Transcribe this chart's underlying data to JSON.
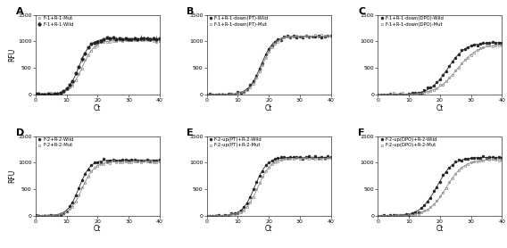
{
  "panels": [
    {
      "label": "A",
      "legend": [
        "F-1+R-1-Wild",
        "F-1+R-1-Mut"
      ],
      "curve_params": [
        {
          "L": 1050,
          "k": 0.55,
          "x0": 14.0
        },
        {
          "L": 1020,
          "k": 0.5,
          "x0": 15.0
        }
      ],
      "markers": [
        "o",
        "s"
      ],
      "colors": [
        "#222222",
        "#888888"
      ],
      "has_errorbars": true,
      "ylim": [
        0,
        1500
      ],
      "yticks": [
        0,
        500,
        1000,
        1500
      ]
    },
    {
      "label": "B",
      "legend": [
        "F-1+R-1-down(PT)-Wild",
        "F-1+R-1-down(PT)-Mut"
      ],
      "curve_params": [
        {
          "L": 1100,
          "k": 0.5,
          "x0": 17.5
        },
        {
          "L": 1100,
          "k": 0.5,
          "x0": 18.0
        }
      ],
      "markers": [
        "o",
        "s"
      ],
      "colors": [
        "#222222",
        "#888888"
      ],
      "has_errorbars": false,
      "ylim": [
        0,
        1500
      ],
      "yticks": [
        0,
        500,
        1000,
        1500
      ]
    },
    {
      "label": "C",
      "legend": [
        "F-1+R-1-down(DPO)-Wild",
        "F-1+R-1-down(DPO)-Mut"
      ],
      "curve_params": [
        {
          "L": 980,
          "k": 0.35,
          "x0": 22.5
        },
        {
          "L": 950,
          "k": 0.3,
          "x0": 25.5
        }
      ],
      "markers": [
        "o",
        "s"
      ],
      "colors": [
        "#222222",
        "#888888"
      ],
      "has_errorbars": false,
      "ylim": [
        0,
        1500
      ],
      "yticks": [
        0,
        500,
        1000,
        1500
      ]
    },
    {
      "label": "D",
      "legend": [
        "F-2+R-2-Wild",
        "F-2+R-2-Mut"
      ],
      "curve_params": [
        {
          "L": 1050,
          "k": 0.55,
          "x0": 14.0
        },
        {
          "L": 1020,
          "k": 0.5,
          "x0": 15.0
        }
      ],
      "markers": [
        "o",
        "s"
      ],
      "colors": [
        "#222222",
        "#888888"
      ],
      "has_errorbars": false,
      "ylim": [
        0,
        1500
      ],
      "yticks": [
        0,
        500,
        1000,
        1500
      ]
    },
    {
      "label": "E",
      "legend": [
        "F-2-up(PT)+R-2-Wild",
        "F-2-up(PT)+R-2-Mut"
      ],
      "curve_params": [
        {
          "L": 1100,
          "k": 0.5,
          "x0": 15.5
        },
        {
          "L": 1080,
          "k": 0.48,
          "x0": 16.5
        }
      ],
      "markers": [
        "o",
        "s"
      ],
      "colors": [
        "#222222",
        "#888888"
      ],
      "has_errorbars": false,
      "ylim": [
        0,
        1500
      ],
      "yticks": [
        0,
        500,
        1000,
        1500
      ]
    },
    {
      "label": "F",
      "legend": [
        "F-2-up(DPO)+R-2-Wild",
        "F-2-up(DPO)+R-2-Mut"
      ],
      "curve_params": [
        {
          "L": 1100,
          "k": 0.38,
          "x0": 19.0
        },
        {
          "L": 1060,
          "k": 0.35,
          "x0": 22.0
        }
      ],
      "markers": [
        "o",
        "s"
      ],
      "colors": [
        "#222222",
        "#888888"
      ],
      "has_errorbars": false,
      "ylim": [
        0,
        1500
      ],
      "yticks": [
        0,
        500,
        1000,
        1500
      ]
    }
  ],
  "xlabel": "Ct",
  "ylabel": "RFU",
  "x_range": [
    0,
    40
  ],
  "xticks": [
    0,
    10,
    20,
    30,
    40
  ],
  "markersize": 2.0,
  "linewidth": 0.6,
  "background": "#ffffff"
}
